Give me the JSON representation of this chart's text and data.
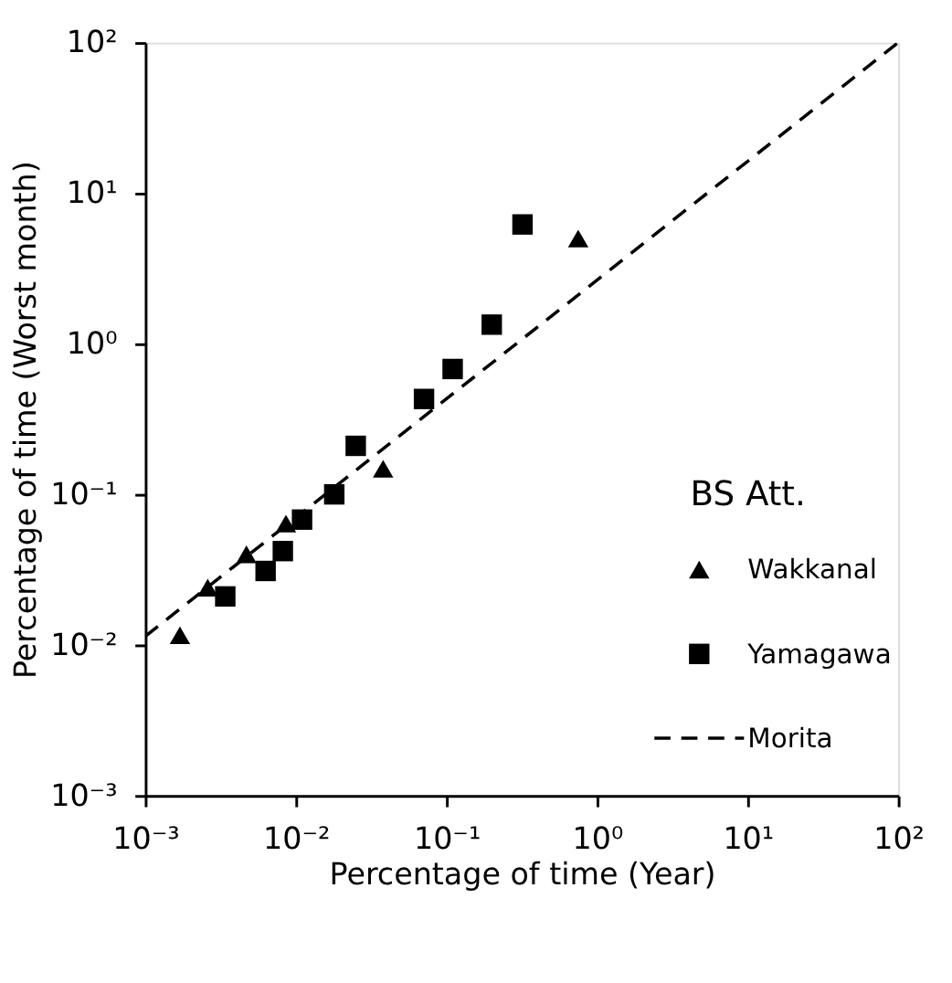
{
  "chart_data": {
    "type": "scatter",
    "xlabel": "Percentage of time (Year)",
    "ylabel": "Percentage of time (Worst month)",
    "legend_title": "BS Att.",
    "legend": "bottom right",
    "log": "xy",
    "grid": false,
    "xlim": [
      0.001,
      100
    ],
    "ylim": [
      0.001,
      100
    ],
    "xticks": [
      {
        "value": 0.001,
        "label": "10⁻³"
      },
      {
        "value": 0.01,
        "label": "10⁻²"
      },
      {
        "value": 0.1,
        "label": "10⁻¹"
      },
      {
        "value": 1,
        "label": "10⁰"
      },
      {
        "value": 10,
        "label": "10¹"
      },
      {
        "value": 100,
        "label": "10²"
      }
    ],
    "yticks": [
      {
        "value": 0.001,
        "label": "10⁻³"
      },
      {
        "value": 0.01,
        "label": "10⁻²"
      },
      {
        "value": 0.1,
        "label": "10⁻¹"
      },
      {
        "value": 1,
        "label": "10⁰"
      },
      {
        "value": 10,
        "label": "10¹"
      },
      {
        "value": 100,
        "label": "10²"
      }
    ],
    "series": [
      {
        "name": "Wakkanal",
        "type": "scatter",
        "marker": "triangle",
        "color": "#000000",
        "x": [
          0.0017,
          0.0026,
          0.0047,
          0.0086,
          0.038,
          0.75
        ],
        "values": [
          0.0116,
          0.024,
          0.04,
          0.064,
          0.148,
          5.0
        ]
      },
      {
        "name": "Yamagawa",
        "type": "scatter",
        "marker": "square",
        "color": "#000000",
        "x": [
          0.0034,
          0.0063,
          0.0082,
          0.011,
          0.018,
          0.025,
          0.071,
          0.11,
          0.2,
          0.32
        ],
        "values": [
          0.021,
          0.031,
          0.042,
          0.068,
          0.1,
          0.21,
          0.43,
          0.68,
          1.34,
          6.2
        ]
      },
      {
        "name": "Morita",
        "type": "line",
        "line_style": "dashed",
        "color": "#000000",
        "x": [
          0.001,
          100
        ],
        "values": [
          0.0114,
          100
        ]
      }
    ]
  }
}
